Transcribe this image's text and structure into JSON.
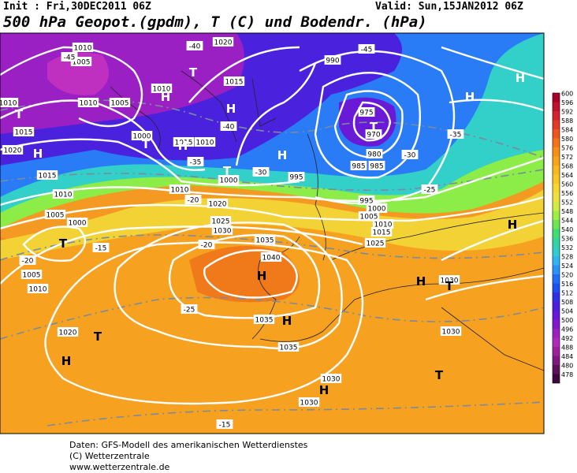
{
  "header": {
    "init": "Init : Fri,30DEC2011 06Z",
    "valid": "Valid: Sun,15JAN2012 06Z",
    "title": "500 hPa Geopot.(gpdm), T (C) und Bodendr. (hPa)"
  },
  "colorbar": {
    "labels": [
      600,
      596,
      592,
      588,
      584,
      580,
      576,
      572,
      568,
      564,
      560,
      556,
      552,
      548,
      544,
      540,
      536,
      532,
      528,
      524,
      520,
      516,
      512,
      508,
      504,
      500,
      496,
      492,
      488,
      484,
      480,
      478
    ],
    "colors": [
      "#a8002a",
      "#c0102e",
      "#d42030",
      "#e43828",
      "#ee5620",
      "#f47418",
      "#f78e18",
      "#f8a418",
      "#f8b620",
      "#f8c628",
      "#f8d632",
      "#eee042",
      "#d0ec42",
      "#a0ee44",
      "#6ee652",
      "#40de72",
      "#30d6a2",
      "#30ccd0",
      "#30b4f0",
      "#2894f8",
      "#206ef8",
      "#204ef0",
      "#3030e6",
      "#4a20de",
      "#6818d6",
      "#8218cc",
      "#9a20c4",
      "#b028bc",
      "#9c209c",
      "#7e187e",
      "#5e105e",
      "#3e083e"
    ]
  },
  "map": {
    "labels": [
      "1010",
      "1005",
      "1010",
      "1015",
      "1020",
      "1020",
      "1010",
      "1005",
      "1000",
      "1015",
      "1010",
      "1015",
      "1010",
      "1010",
      "1000",
      "1015",
      "995",
      "990",
      "975",
      "970",
      "980",
      "985",
      "985",
      "995",
      "1000",
      "1005",
      "1010",
      "1015",
      "1020",
      "1025",
      "1030",
      "1035",
      "1040",
      "1035",
      "1035",
      "1030",
      "1030",
      "1030",
      "1030",
      "1025",
      "1020",
      "1005",
      "1010",
      "1000",
      "1005",
      "1010",
      "-45",
      "-40",
      "-35",
      "-30",
      "-25",
      "-20",
      "-15",
      "-20",
      "-25",
      "-30",
      "-35",
      "-40",
      "-45",
      "-20",
      "-15"
    ],
    "symbols": [
      "H",
      "H",
      "H",
      "T",
      "T",
      "H",
      "T",
      "T",
      "H",
      "H",
      "H",
      "H",
      "T",
      "T",
      "H",
      "H",
      "T",
      "H",
      "T",
      "H",
      "H",
      "T"
    ]
  },
  "footer": {
    "line1": "Daten: GFS-Modell des amerikanischen Wetterdienstes",
    "line2": "(C) Wetterzentrale",
    "line3": "www.wetterzentrale.de"
  }
}
